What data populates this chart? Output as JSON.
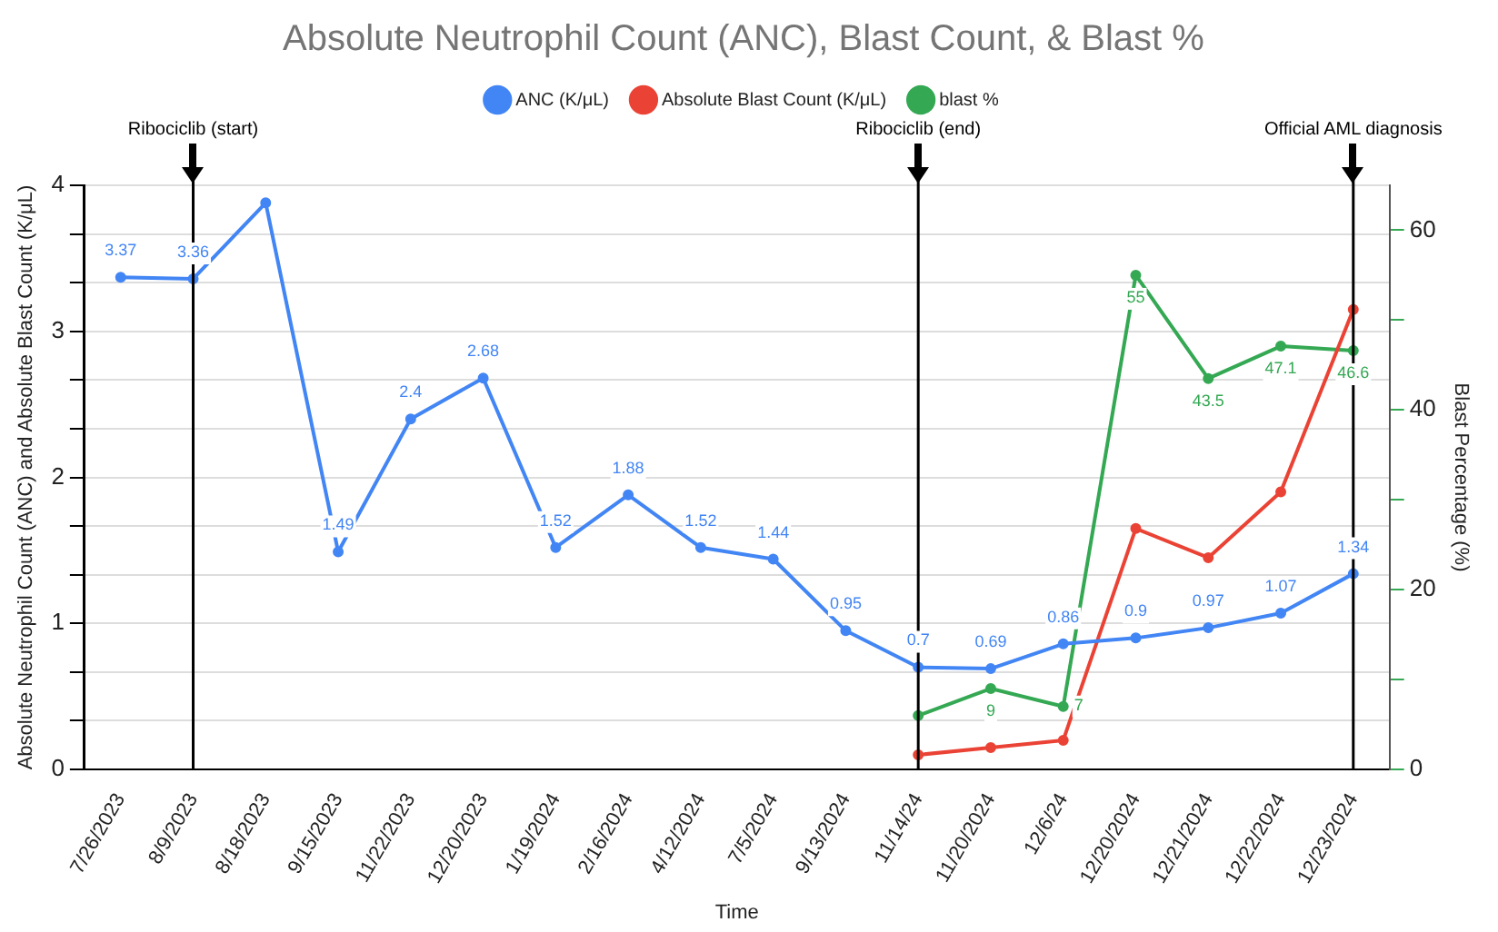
{
  "chart_data": {
    "type": "line",
    "title": "Absolute Neutrophil Count (ANC), Blast Count, & Blast %",
    "xlabel": "Time",
    "ylabel": "Absolute Neutrophil Count (ANC) and Absolute Blast Count (K/μL)",
    "y2label": "Blast Percentage (%)",
    "categories": [
      "7/26/2023",
      "8/9/2023",
      "8/18/2023",
      "9/15/2023",
      "11/22/2023",
      "12/20/2023",
      "1/19/2024",
      "2/16/2024",
      "4/12/2024",
      "7/5/2024",
      "9/13/2024",
      "11/14/24",
      "11/20/2024",
      "12/6/24",
      "12/20/2024",
      "12/21/2024",
      "12/22/2024",
      "12/23/2024"
    ],
    "series": [
      {
        "name": "ANC (K/μL)",
        "color": "#4285f4",
        "values": [
          3.37,
          3.36,
          3.88,
          1.49,
          2.4,
          2.68,
          1.52,
          1.88,
          1.52,
          1.44,
          0.95,
          0.7,
          0.69,
          0.86,
          0.9,
          0.97,
          1.07,
          1.34
        ],
        "value_labels": [
          "3.37",
          "3.36",
          null,
          "1.49",
          "2.4",
          "2.68",
          "1.52",
          "1.88",
          "1.52",
          "1.44",
          "0.95",
          "0.7",
          "0.69",
          "0.86",
          "0.9",
          "0.97",
          "1.07",
          "1.34"
        ]
      },
      {
        "name": "Absolute Blast Count (K/μL)",
        "color": "#ea4335",
        "values": [
          null,
          null,
          null,
          null,
          null,
          null,
          null,
          null,
          null,
          null,
          null,
          0.1,
          0.15,
          0.2,
          1.65,
          1.45,
          1.9,
          3.15
        ]
      },
      {
        "name": "blast %",
        "color": "#34a853",
        "axis": "y2",
        "values": [
          null,
          null,
          null,
          null,
          null,
          null,
          null,
          null,
          null,
          null,
          null,
          6,
          9,
          7,
          55,
          43.5,
          47.1,
          46.6
        ],
        "value_labels": [
          null,
          null,
          null,
          null,
          null,
          null,
          null,
          null,
          null,
          null,
          null,
          null,
          "9",
          "7",
          "55",
          "43.5",
          "47.1",
          "46.6"
        ]
      }
    ],
    "ylim": [
      0,
      4
    ],
    "yticks": [
      0,
      {
        "value": 0.3333,
        "label": null
      },
      {
        "value": 0.6667,
        "label": null
      },
      1,
      {
        "value": 1.3333,
        "label": null
      },
      {
        "value": 1.6667,
        "label": null
      },
      2,
      {
        "value": 2.3333,
        "label": null
      },
      {
        "value": 2.6667,
        "label": null
      },
      3,
      {
        "value": 3.3333,
        "label": null
      },
      {
        "value": 3.6667,
        "label": null
      },
      4
    ],
    "y2lim": [
      0,
      65
    ],
    "y2ticks": [
      0,
      {
        "value": 10,
        "label": null
      },
      20,
      {
        "value": 30,
        "label": null
      },
      40,
      {
        "value": 50,
        "label": null
      },
      60
    ],
    "ref_lines": [
      {
        "axis": "x",
        "value": "8/9/2023",
        "label": "Ribociclib (start)",
        "color": "#000000"
      },
      {
        "axis": "x",
        "value": "11/14/24",
        "label": "Ribociclib (end)",
        "color": "#000000"
      },
      {
        "axis": "x",
        "value": "12/23/2024",
        "label": "Official AML diagnosis",
        "color": "#000000"
      }
    ],
    "grid": "y",
    "legend": "top",
    "marker": "circle",
    "line_style": "solid"
  }
}
